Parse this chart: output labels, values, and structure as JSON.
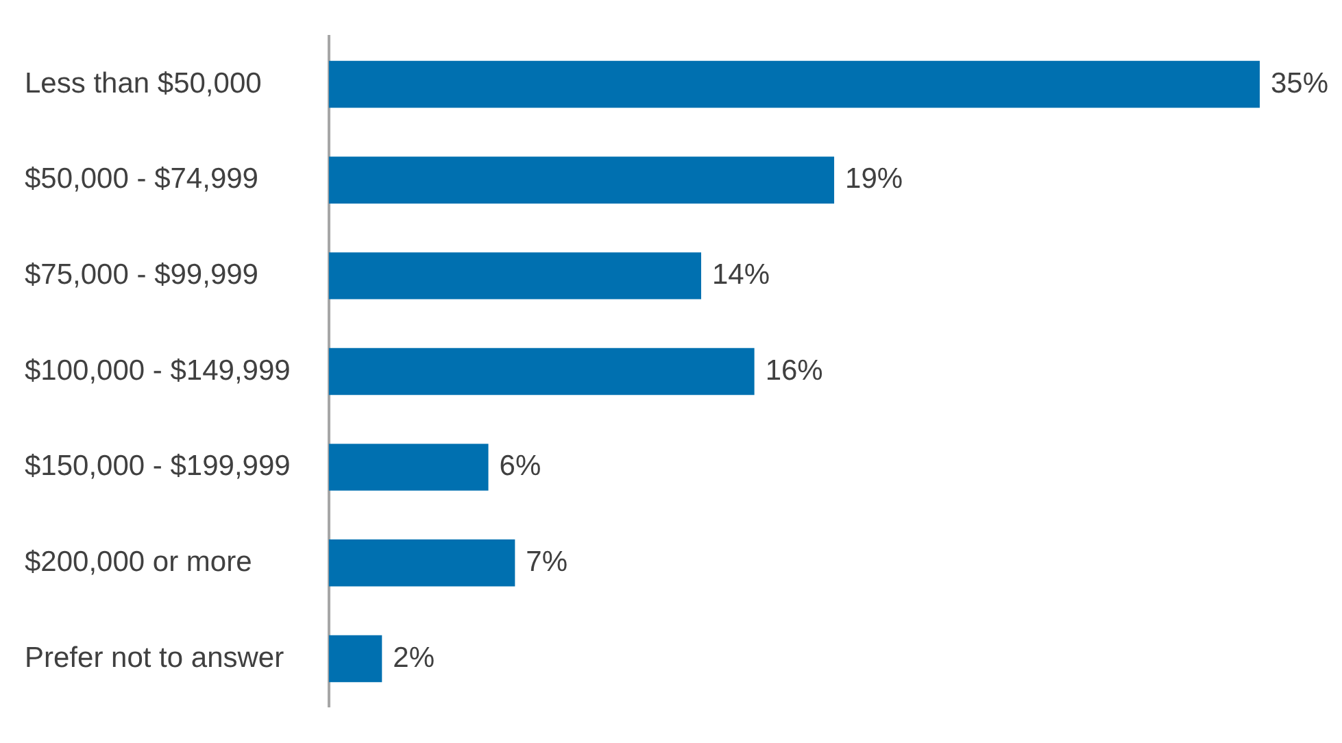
{
  "chart_data": {
    "type": "bar",
    "orientation": "horizontal",
    "categories": [
      "Less than $50,000",
      "$50,000 - $74,999",
      "$75,000 - $99,999",
      "$100,000 - $149,999",
      "$150,000 - $199,999",
      "$200,000 or more",
      "Prefer not to answer"
    ],
    "values": [
      35,
      19,
      14,
      16,
      6,
      7,
      2
    ],
    "value_labels": [
      "35%",
      "19%",
      "14%",
      "16%",
      "6%",
      "7%",
      "2%"
    ],
    "color": "#0070b0",
    "grid": false,
    "legend": false
  }
}
